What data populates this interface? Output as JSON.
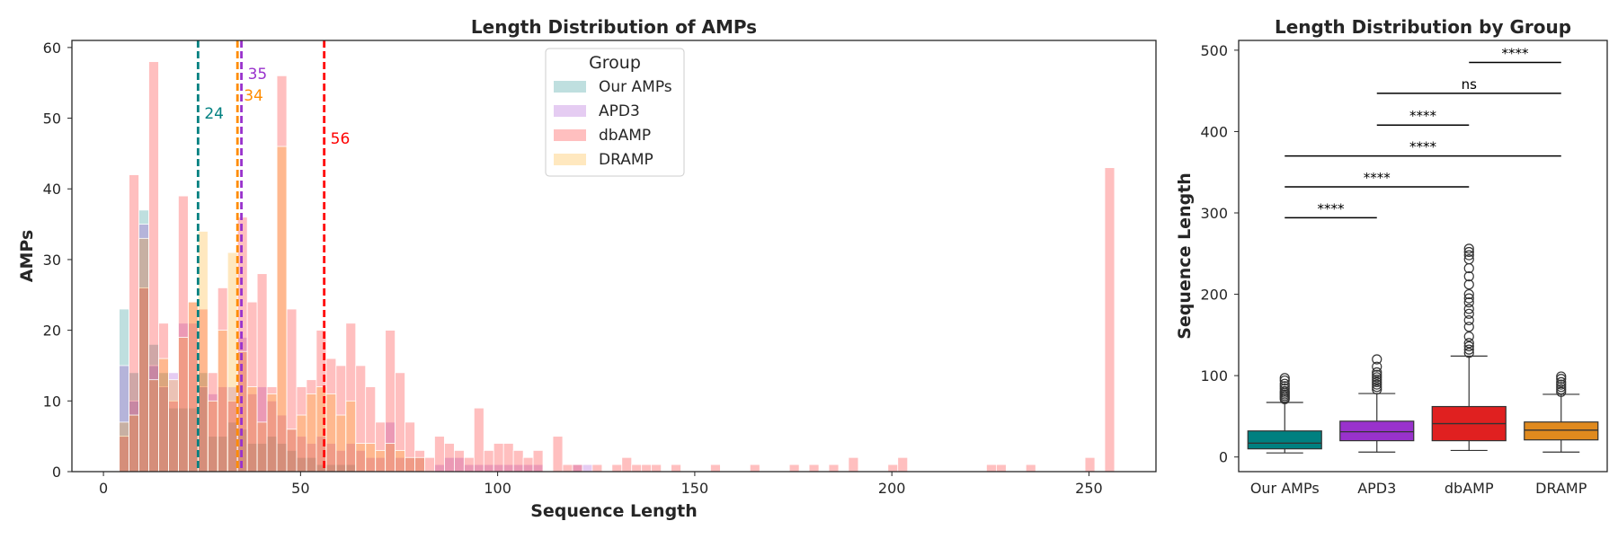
{
  "chart_data": [
    {
      "type": "bar",
      "subtype": "overlaid-histogram",
      "title": "Length Distribution of AMPs",
      "xlabel": "Sequence Length",
      "ylabel": "AMPs",
      "xlim": [
        -8,
        267
      ],
      "ylim": [
        0,
        61
      ],
      "xticks": [
        "0",
        "50",
        "100",
        "150",
        "200",
        "250"
      ],
      "yticks": [
        "0",
        "10",
        "20",
        "30",
        "40",
        "50",
        "60"
      ],
      "bin_width": 2.5,
      "grid": false,
      "legend": {
        "title": "Group",
        "position": "top-center",
        "entries": [
          "Our AMPs",
          "APD3",
          "dbAMP",
          "DRAMP"
        ]
      },
      "series": [
        {
          "name": "Our AMPs",
          "color": "#008080",
          "bars": [
            [
              4,
              23
            ],
            [
              6.5,
              14
            ],
            [
              9,
              37
            ],
            [
              11.5,
              18
            ],
            [
              14,
              14
            ],
            [
              16.5,
              9
            ],
            [
              19,
              9
            ],
            [
              21.5,
              9
            ],
            [
              24,
              14
            ],
            [
              26.5,
              5
            ],
            [
              29,
              5
            ],
            [
              31.5,
              7
            ],
            [
              34,
              6
            ],
            [
              36.5,
              4
            ],
            [
              39,
              4
            ],
            [
              41.5,
              5
            ],
            [
              44,
              4
            ],
            [
              46.5,
              3
            ],
            [
              49,
              2
            ],
            [
              51.5,
              2
            ],
            [
              54,
              1
            ],
            [
              56.5,
              1
            ],
            [
              59,
              1
            ],
            [
              61.5,
              1
            ]
          ]
        },
        {
          "name": "APD3",
          "color": "#9932cc",
          "bars": [
            [
              4,
              15
            ],
            [
              6.5,
              10
            ],
            [
              9,
              35
            ],
            [
              11.5,
              15
            ],
            [
              14,
              12
            ],
            [
              16.5,
              14
            ],
            [
              19,
              21
            ],
            [
              21.5,
              21
            ],
            [
              24,
              12
            ],
            [
              26.5,
              11
            ],
            [
              29,
              12
            ],
            [
              31.5,
              12
            ],
            [
              34,
              19
            ],
            [
              36.5,
              11
            ],
            [
              39,
              12
            ],
            [
              41.5,
              10
            ],
            [
              44,
              8
            ],
            [
              46.5,
              6
            ],
            [
              49,
              5
            ],
            [
              51.5,
              4
            ],
            [
              54,
              5
            ],
            [
              56.5,
              4
            ],
            [
              59,
              3
            ],
            [
              61.5,
              4
            ],
            [
              64,
              3
            ],
            [
              66.5,
              2
            ],
            [
              69,
              2
            ],
            [
              71.5,
              7
            ],
            [
              74,
              2
            ],
            [
              76.5,
              2
            ],
            [
              79,
              2
            ],
            [
              84,
              1
            ],
            [
              86.5,
              2
            ],
            [
              89,
              2
            ],
            [
              91.5,
              1
            ],
            [
              94,
              1
            ],
            [
              96.5,
              1
            ],
            [
              99,
              1
            ],
            [
              101.5,
              1
            ],
            [
              104,
              1
            ],
            [
              106.5,
              1
            ],
            [
              109,
              1
            ],
            [
              119,
              1
            ],
            [
              121.5,
              1
            ]
          ]
        },
        {
          "name": "dbAMP",
          "color": "#ff0000",
          "bars": [
            [
              4,
              5
            ],
            [
              6.5,
              42
            ],
            [
              9,
              26
            ],
            [
              11.5,
              58
            ],
            [
              14,
              21
            ],
            [
              16.5,
              10
            ],
            [
              19,
              39
            ],
            [
              21.5,
              24
            ],
            [
              24,
              23
            ],
            [
              26.5,
              14
            ],
            [
              29,
              26
            ],
            [
              31.5,
              10
            ],
            [
              34,
              36
            ],
            [
              36.5,
              24
            ],
            [
              39,
              28
            ],
            [
              41.5,
              12
            ],
            [
              44,
              56
            ],
            [
              46.5,
              23
            ],
            [
              49,
              12
            ],
            [
              51.5,
              13
            ],
            [
              54,
              20
            ],
            [
              56.5,
              16
            ],
            [
              59,
              15
            ],
            [
              61.5,
              21
            ],
            [
              64,
              15
            ],
            [
              66.5,
              12
            ],
            [
              69,
              7
            ],
            [
              71.5,
              20
            ],
            [
              74,
              14
            ],
            [
              76.5,
              7
            ],
            [
              79,
              3
            ],
            [
              81.5,
              2
            ],
            [
              84,
              5
            ],
            [
              86.5,
              4
            ],
            [
              89,
              3
            ],
            [
              91.5,
              2
            ],
            [
              94,
              9
            ],
            [
              96.5,
              3
            ],
            [
              99,
              4
            ],
            [
              101.5,
              4
            ],
            [
              104,
              3
            ],
            [
              106.5,
              2
            ],
            [
              109,
              3
            ],
            [
              114,
              5
            ],
            [
              116.5,
              1
            ],
            [
              119,
              1
            ],
            [
              124,
              1
            ],
            [
              129,
              1
            ],
            [
              131.5,
              2
            ],
            [
              134,
              1
            ],
            [
              136.5,
              1
            ],
            [
              139,
              1
            ],
            [
              144,
              1
            ],
            [
              154,
              1
            ],
            [
              164,
              1
            ],
            [
              174,
              1
            ],
            [
              179,
              1
            ],
            [
              184,
              1
            ],
            [
              189,
              2
            ],
            [
              199,
              1
            ],
            [
              201.5,
              2
            ],
            [
              224,
              1
            ],
            [
              226.5,
              1
            ],
            [
              234,
              1
            ],
            [
              249,
              2
            ],
            [
              254,
              43
            ]
          ]
        },
        {
          "name": "DRAMP",
          "color": "#ffa500",
          "bars": [
            [
              4,
              7
            ],
            [
              6.5,
              8
            ],
            [
              9,
              33
            ],
            [
              11.5,
              13
            ],
            [
              14,
              16
            ],
            [
              16.5,
              13
            ],
            [
              19,
              19
            ],
            [
              21.5,
              24
            ],
            [
              24,
              34
            ],
            [
              26.5,
              10
            ],
            [
              29,
              20
            ],
            [
              31.5,
              31
            ],
            [
              34,
              17
            ],
            [
              36.5,
              12
            ],
            [
              39,
              7
            ],
            [
              41.5,
              11
            ],
            [
              44,
              46
            ],
            [
              46.5,
              6
            ],
            [
              49,
              8
            ],
            [
              51.5,
              11
            ],
            [
              54,
              12
            ],
            [
              56.5,
              11
            ],
            [
              59,
              8
            ],
            [
              61.5,
              10
            ],
            [
              64,
              4
            ],
            [
              66.5,
              4
            ],
            [
              69,
              3
            ],
            [
              71.5,
              4
            ],
            [
              74,
              3
            ],
            [
              76.5,
              2
            ],
            [
              79,
              2
            ]
          ]
        }
      ],
      "medians": [
        {
          "value": 24,
          "label": "24",
          "color": "#008080"
        },
        {
          "value": 35,
          "label": "35",
          "color": "#9932cc"
        },
        {
          "value": 34,
          "label": "34",
          "color": "#ff8c00"
        },
        {
          "value": 56,
          "label": "56",
          "color": "#ff0000"
        }
      ]
    },
    {
      "type": "box",
      "title": "Length Distribution by Group",
      "xlabel": "",
      "ylabel": "Sequence Length",
      "ylim": [
        -18,
        512
      ],
      "yticks": [
        "0",
        "100",
        "200",
        "300",
        "400",
        "500"
      ],
      "categories": [
        "Our AMPs",
        "APD3",
        "dbAMP",
        "DRAMP"
      ],
      "boxes": [
        {
          "name": "Our AMPs",
          "color": "#008080",
          "whisker_low": 5,
          "q1": 10,
          "median": 17,
          "q3": 32,
          "whisker_high": 67,
          "outliers": [
            71,
            73,
            75,
            77,
            79,
            81,
            84,
            87,
            90,
            94,
            97
          ]
        },
        {
          "name": "APD3",
          "color": "#9932cc",
          "whisker_low": 6,
          "q1": 20,
          "median": 31,
          "q3": 44,
          "whisker_high": 78,
          "outliers": [
            83,
            86,
            89,
            92,
            95,
            98,
            101,
            104,
            111,
            120
          ]
        },
        {
          "name": "dbAMP",
          "color": "#e02020",
          "whisker_low": 8,
          "q1": 20,
          "median": 41,
          "q3": 62,
          "whisker_high": 124,
          "outliers": [
            128,
            132,
            136,
            140,
            148,
            160,
            168,
            176,
            182,
            190,
            195,
            200,
            212,
            222,
            232,
            243,
            248,
            252,
            256
          ]
        },
        {
          "name": "DRAMP",
          "color": "#e08a1e",
          "whisker_low": 6,
          "q1": 21,
          "median": 33,
          "q3": 43,
          "whisker_high": 77,
          "outliers": [
            80,
            83,
            86,
            89,
            92,
            96,
            99
          ]
        }
      ],
      "significance": [
        {
          "from": 0,
          "to": 1,
          "y": 294,
          "label": "****"
        },
        {
          "from": 0,
          "to": 2,
          "y": 332,
          "label": "****"
        },
        {
          "from": 0,
          "to": 3,
          "y": 370,
          "label": "****"
        },
        {
          "from": 1,
          "to": 2,
          "y": 408,
          "label": "****"
        },
        {
          "from": 1,
          "to": 3,
          "y": 447,
          "label": "ns"
        },
        {
          "from": 2,
          "to": 3,
          "y": 485,
          "label": "****"
        }
      ]
    }
  ]
}
